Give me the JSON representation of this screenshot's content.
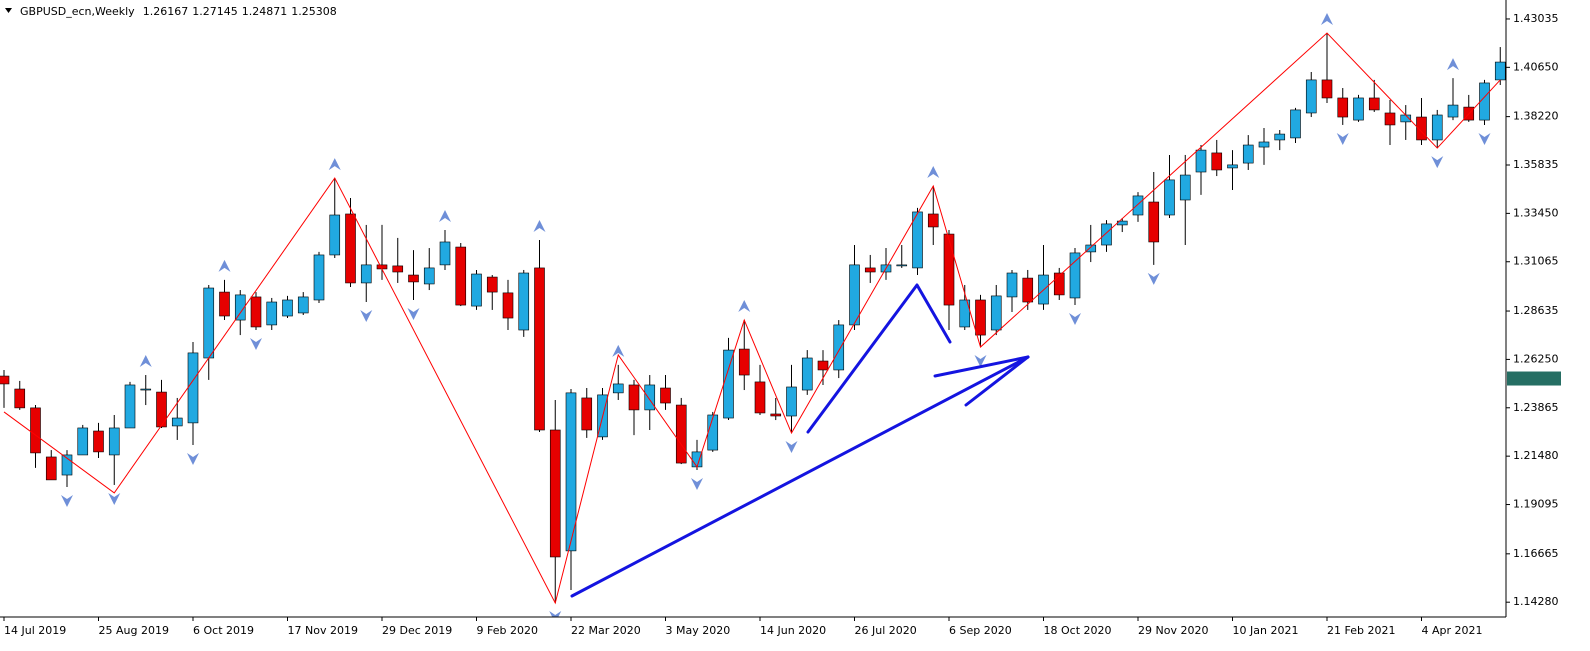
{
  "chart_data": {
    "type": "candlestick",
    "title": "GBPUSD_ecn,Weekly",
    "quote": [
      1.26167,
      1.27145,
      1.24871,
      1.25308
    ],
    "categories": [
      "14 Jul 2019",
      null,
      null,
      null,
      null,
      null,
      "25 Aug 2019",
      null,
      null,
      null,
      null,
      null,
      "6 Oct 2019",
      null,
      null,
      null,
      null,
      null,
      "17 Nov 2019",
      null,
      null,
      null,
      null,
      null,
      "29 Dec 2019",
      null,
      null,
      null,
      null,
      null,
      "9 Feb 2020",
      null,
      null,
      null,
      null,
      null,
      "22 Mar 2020",
      null,
      null,
      null,
      null,
      null,
      "3 May 2020",
      null,
      null,
      null,
      null,
      null,
      "14 Jun 2020",
      null,
      null,
      null,
      null,
      null,
      "26 Jul 2020",
      null,
      null,
      null,
      null,
      null,
      "6 Sep 2020",
      null,
      null,
      null,
      null,
      null,
      "18 Oct 2020",
      null,
      null,
      null,
      null,
      null,
      "29 Nov 2020",
      null,
      null,
      null,
      null,
      null,
      "10 Jan 2021",
      null,
      null,
      null,
      null,
      null,
      "21 Feb 2021",
      null,
      null,
      null,
      null,
      null,
      "4 Apr 2021",
      null,
      null,
      null,
      null,
      null
    ],
    "open": [
      1.2543,
      1.2479,
      1.2386,
      1.2144,
      1.2055,
      1.2154,
      1.2272,
      1.2154,
      1.2287,
      1.2474,
      1.2464,
      1.2297,
      1.2312,
      1.2632,
      1.2957,
      1.2819,
      1.2933,
      1.2795,
      1.2839,
      1.2854,
      1.2918,
      1.314,
      1.3342,
      1.3002,
      1.3091,
      1.3086,
      1.3041,
      1.2997,
      1.3091,
      1.3179,
      1.2888,
      1.3031,
      1.2953,
      1.277,
      1.3076,
      1.2277,
      1.1681,
      1.2435,
      1.2243,
      1.246,
      1.2499,
      1.2376,
      1.2484,
      1.24,
      1.2095,
      1.2178,
      1.2336,
      1.2676,
      1.2514,
      1.2356,
      1.2346,
      1.2474,
      1.2617,
      1.2573,
      1.2795,
      1.3076,
      1.3056,
      1.3086,
      1.3076,
      1.3342,
      1.3243,
      1.2785,
      1.2918,
      1.277,
      1.2933,
      1.3026,
      1.2898,
      1.3051,
      1.2928,
      1.3155,
      1.3189,
      1.3288,
      1.3337,
      1.3401,
      1.3337,
      1.3411,
      1.3549,
      1.3643,
      1.3569,
      1.3593,
      1.3672,
      1.3707,
      1.3717,
      1.384,
      1.4003,
      1.3914,
      1.3805,
      1.3914,
      1.384,
      1.3796,
      1.382,
      1.3707,
      1.382,
      1.3869,
      1.3805,
      1.4003
    ],
    "high": [
      1.2573,
      1.2519,
      1.24,
      1.2178,
      1.2178,
      1.2302,
      1.2312,
      1.2351,
      1.2514,
      1.2548,
      1.2524,
      1.2435,
      1.2711,
      1.2992,
      1.3017,
      1.2967,
      1.2957,
      1.2928,
      1.2938,
      1.2957,
      1.3155,
      1.3519,
      1.3421,
      1.3288,
      1.3288,
      1.3224,
      1.3164,
      1.3174,
      1.3263,
      1.3199,
      1.3066,
      1.3041,
      1.3017,
      1.3066,
      1.3214,
      1.2425,
      1.2479,
      1.2484,
      1.2484,
      1.2598,
      1.2524,
      1.2548,
      1.2548,
      1.2435,
      1.2228,
      1.2366,
      1.2731,
      1.2819,
      1.2598,
      1.2435,
      1.2598,
      1.2671,
      1.2671,
      1.2819,
      1.3189,
      1.314,
      1.3174,
      1.3189,
      1.3372,
      1.348,
      1.3263,
      1.2992,
      1.2943,
      1.2992,
      1.3066,
      1.3066,
      1.3189,
      1.3076,
      1.3174,
      1.3288,
      1.3312,
      1.3322,
      1.345,
      1.3549,
      1.3633,
      1.3633,
      1.3682,
      1.3707,
      1.3657,
      1.3731,
      1.3766,
      1.3756,
      1.3865,
      1.4042,
      1.4234,
      1.3963,
      1.3929,
      1.4003,
      1.3904,
      1.3879,
      1.3914,
      1.3855,
      1.4012,
      1.3929,
      1.4003,
      1.4165
    ],
    "low": [
      1.2386,
      1.2376,
      1.209,
      1.2031,
      1.1996,
      1.2154,
      1.2139,
      1.2006,
      1.2287,
      1.24,
      1.2287,
      1.2228,
      1.2203,
      1.2524,
      1.2819,
      1.2745,
      1.277,
      1.277,
      1.2829,
      1.2844,
      1.2903,
      1.3125,
      1.2982,
      1.2908,
      1.3017,
      1.3002,
      1.2918,
      1.2967,
      1.3066,
      1.2888,
      1.2869,
      1.2869,
      1.277,
      1.2736,
      1.2267,
      1.1424,
      1.1488,
      1.2238,
      1.2228,
      1.2425,
      1.2252,
      1.2277,
      1.2376,
      1.2109,
      1.208,
      1.2169,
      1.2326,
      1.2474,
      1.2351,
      1.2326,
      1.2262,
      1.245,
      1.2499,
      1.2533,
      1.277,
      1.3002,
      1.3017,
      1.3076,
      1.3041,
      1.3189,
      1.277,
      1.277,
      1.2686,
      1.2745,
      1.2859,
      1.2869,
      1.2869,
      1.2918,
      1.2893,
      1.3105,
      1.3155,
      1.3253,
      1.3303,
      1.3091,
      1.3322,
      1.3189,
      1.3436,
      1.3529,
      1.346,
      1.3559,
      1.3584,
      1.3657,
      1.3692,
      1.382,
      1.3889,
      1.3781,
      1.3796,
      1.3845,
      1.3682,
      1.3707,
      1.3682,
      1.3667,
      1.3805,
      1.3796,
      1.3781,
      1.3978
    ],
    "close": [
      1.2504,
      1.2386,
      1.2164,
      1.2031,
      1.2154,
      1.2287,
      1.2169,
      1.2287,
      1.2499,
      1.2479,
      1.2292,
      1.2336,
      1.2657,
      1.2977,
      1.2839,
      1.2943,
      1.2785,
      1.2908,
      1.2918,
      1.2933,
      1.314,
      1.3337,
      1.3002,
      1.3091,
      1.3071,
      1.3056,
      1.3007,
      1.3076,
      1.3204,
      1.2893,
      1.3046,
      1.2957,
      1.2829,
      1.3051,
      1.2277,
      1.1651,
      1.246,
      1.2277,
      1.245,
      1.2504,
      1.2376,
      1.2499,
      1.241,
      1.2114,
      1.2169,
      1.2351,
      1.2671,
      1.2548,
      1.2361,
      1.2346,
      1.2489,
      1.2632,
      1.2573,
      1.2795,
      1.3091,
      1.3056,
      1.3091,
      1.3091,
      1.3352,
      1.3278,
      1.2893,
      1.2918,
      1.2745,
      1.2938,
      1.3051,
      1.2908,
      1.3041,
      1.2943,
      1.315,
      1.3189,
      1.3293,
      1.3307,
      1.3431,
      1.3204,
      1.351,
      1.3534,
      1.3657,
      1.3559,
      1.3584,
      1.3682,
      1.3697,
      1.3736,
      1.3855,
      1.4003,
      1.3914,
      1.382,
      1.3914,
      1.3855,
      1.3781,
      1.383,
      1.3707,
      1.383,
      1.3879,
      1.3805,
      1.3988,
      1.4091
    ],
    "up_color": "#21a9e1",
    "down_color": "#e60000",
    "wick_color": "#000000",
    "zigzag": {
      "color": "#ff0000",
      "x": [
        0,
        7,
        21,
        35,
        39,
        44,
        47,
        50,
        59,
        62,
        84,
        91,
        95
      ],
      "y": [
        1.2366,
        1.1967,
        1.3519,
        1.1424,
        1.2647,
        1.2095,
        1.2819,
        1.2262,
        1.348,
        1.2686,
        1.4234,
        1.3667,
        1.4003
      ]
    },
    "fractals": {
      "color": "#6f8fd8",
      "up": [
        9,
        14,
        21,
        28,
        34,
        39,
        47,
        59,
        84,
        92
      ],
      "down": [
        4,
        7,
        12,
        16,
        23,
        26,
        35,
        44,
        50,
        62,
        68,
        73,
        85,
        91,
        94
      ]
    },
    "last_price_color": "#256e63",
    "ylim": [
      1.1355,
      1.4397
    ],
    "yticks": [
      1.43035,
      {
        "value": 1.4065,
        "label": "1.40650"
      },
      {
        "value": 1.3822,
        "label": "1.38220"
      },
      1.35835,
      {
        "value": 1.3345,
        "label": "1.33450"
      },
      1.31065,
      1.28635,
      {
        "value": 1.2625,
        "label": "1.26250"
      },
      1.23865,
      {
        "value": 1.2148,
        "label": "1.21480"
      },
      1.19095,
      1.16665,
      {
        "value": 1.1428,
        "label": "1.14280"
      }
    ]
  }
}
